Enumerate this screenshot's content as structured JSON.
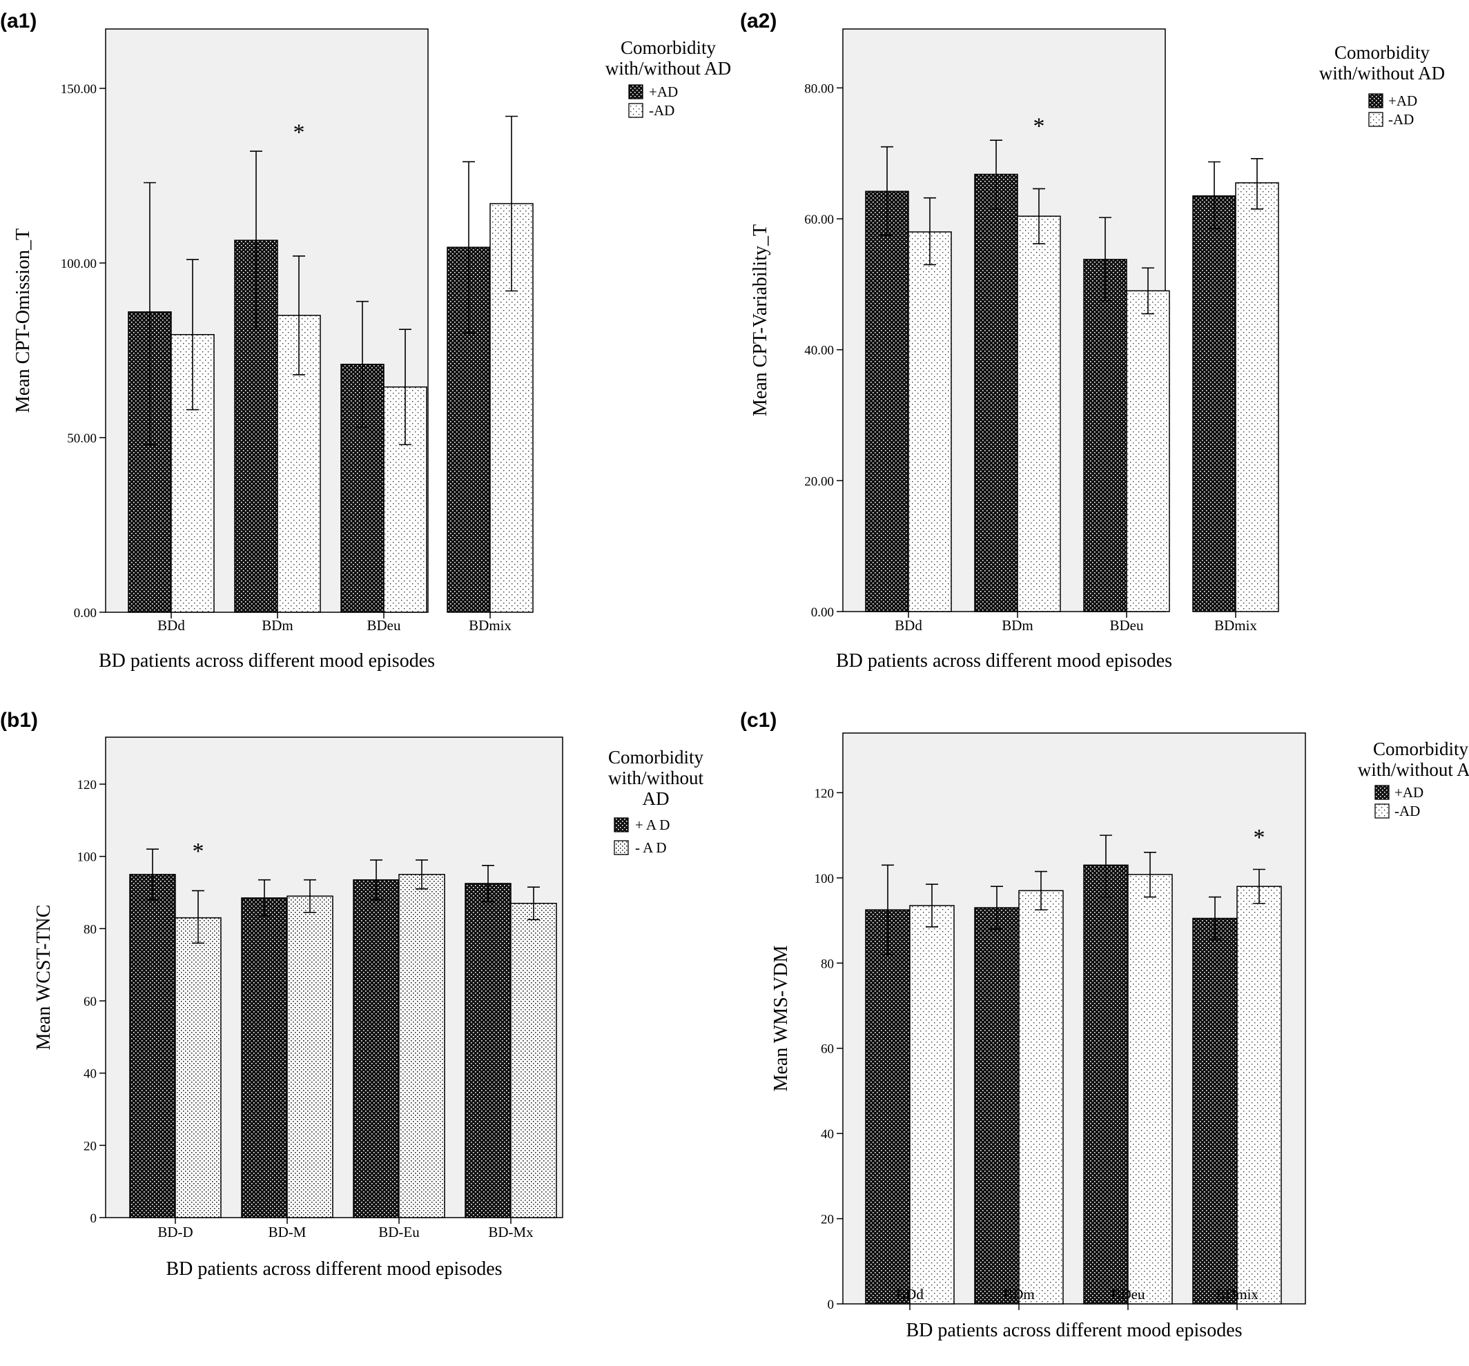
{
  "chart_data": [
    {
      "panel": "(a1)",
      "type": "bar",
      "categories": [
        "BDd",
        "BDm",
        "BDeu",
        "BDmix"
      ],
      "series": [
        {
          "name": "+AD",
          "values": [
            86,
            106.5,
            71,
            104.5
          ],
          "error_low": [
            48,
            81,
            53,
            80
          ],
          "error_high": [
            123,
            132,
            89,
            129
          ]
        },
        {
          "name": "-AD",
          "values": [
            79.5,
            85,
            64.5,
            117
          ],
          "error_low": [
            58,
            68,
            48,
            92
          ],
          "error_high": [
            101,
            102,
            81,
            142
          ]
        }
      ],
      "ticks": [
        "0.00",
        "50.00",
        "100.00",
        "150.00"
      ],
      "ylim": [
        0,
        167
      ],
      "ylabel": "Mean CPT-Omission_T",
      "xlabel": "BD patients across different mood episodes",
      "legend_title": [
        "Comorbidity",
        "with/without AD"
      ],
      "legend_labels": [
        "+AD",
        "-AD"
      ],
      "annotations": [
        {
          "text": "*",
          "category": "BDm",
          "y": 138
        }
      ],
      "grid": false,
      "legend_position": "top-right outside"
    },
    {
      "panel": "(a2)",
      "type": "bar",
      "categories": [
        "BDd",
        "BDm",
        "BDeu",
        "BDmix"
      ],
      "series": [
        {
          "name": "+AD",
          "values": [
            64.2,
            66.8,
            53.8,
            63.5
          ],
          "error_low": [
            57.5,
            61.5,
            47.5,
            58.5
          ],
          "error_high": [
            71,
            72,
            60.2,
            68.7
          ]
        },
        {
          "name": "-AD",
          "values": [
            58,
            60.4,
            49,
            65.5
          ],
          "error_low": [
            53,
            56.2,
            45.5,
            61.5
          ],
          "error_high": [
            63.2,
            64.6,
            52.5,
            69.2
          ]
        }
      ],
      "ticks": [
        "0.00",
        "20.00",
        "40.00",
        "60.00",
        "80.00"
      ],
      "ylim": [
        0,
        89
      ],
      "ylabel": "Mean CPT-Variability_T",
      "xlabel": "BD patients across different mood episodes",
      "legend_title": [
        "Comorbidity",
        "with/without AD"
      ],
      "legend_labels": [
        "+AD",
        "-AD"
      ],
      "annotations": [
        {
          "text": "*",
          "category": "BDm",
          "y": 74.5
        }
      ],
      "grid": false,
      "legend_position": "top-right outside"
    },
    {
      "panel": "(b1)",
      "type": "bar",
      "categories": [
        "BD-D",
        "BD-M",
        "BD-Eu",
        "BD-Mx"
      ],
      "series": [
        {
          "name": "+ A D",
          "values": [
            95,
            88.5,
            93.5,
            92.5
          ],
          "error_low": [
            88,
            83.5,
            88,
            87.5
          ],
          "error_high": [
            102,
            93.5,
            99,
            97.5
          ]
        },
        {
          "name": "- A D",
          "values": [
            83,
            89,
            95,
            87
          ],
          "error_low": [
            76,
            84.5,
            91,
            82.5
          ],
          "error_high": [
            90.5,
            93.5,
            99,
            91.5
          ]
        }
      ],
      "ticks": [
        "0",
        "20",
        "40",
        "60",
        "80",
        "100",
        "120"
      ],
      "ylim": [
        0,
        133
      ],
      "ylabel": "Mean WCST-TNC",
      "xlabel": "BD patients across different mood episodes",
      "legend_title": [
        "Comorbidity",
        "with/without",
        "AD"
      ],
      "legend_labels": [
        "+ A D",
        "- A D"
      ],
      "annotations": [
        {
          "text": "*",
          "category": "BD-D",
          "y": 102
        }
      ],
      "grid": false,
      "legend_position": "top-right outside"
    },
    {
      "panel": "(c1)",
      "type": "bar",
      "categories": [
        "BDd",
        "BDm",
        "BDeu",
        "BDmix"
      ],
      "series": [
        {
          "name": "+AD",
          "values": [
            92.5,
            93,
            103,
            90.5
          ],
          "error_low": [
            82,
            88,
            95.5,
            85.5
          ],
          "error_high": [
            103,
            98,
            110,
            95.5
          ]
        },
        {
          "name": "-AD",
          "values": [
            93.5,
            97,
            100.8,
            98
          ],
          "error_low": [
            88.5,
            92.5,
            95.5,
            94
          ],
          "error_high": [
            98.5,
            101.5,
            106,
            102
          ]
        }
      ],
      "ticks": [
        "0",
        "20",
        "40",
        "60",
        "80",
        "100",
        "120"
      ],
      "ylim": [
        0,
        134
      ],
      "ylabel": "Mean WMS-VDM",
      "xlabel": "BD patients across different mood episodes",
      "legend_title": [
        "Comorbidity",
        "with/without AD"
      ],
      "legend_labels": [
        "+AD",
        "-AD"
      ],
      "annotations": [
        {
          "text": "*",
          "category": "BDmix",
          "y": 110
        }
      ],
      "grid": false,
      "legend_position": "top-right outside"
    }
  ],
  "colors": {
    "plot_background": "#f0f0f0",
    "page_background": "#ffffff",
    "bar_dark": "#111111",
    "bar_light": "#ffffff",
    "ink": "#000000"
  }
}
